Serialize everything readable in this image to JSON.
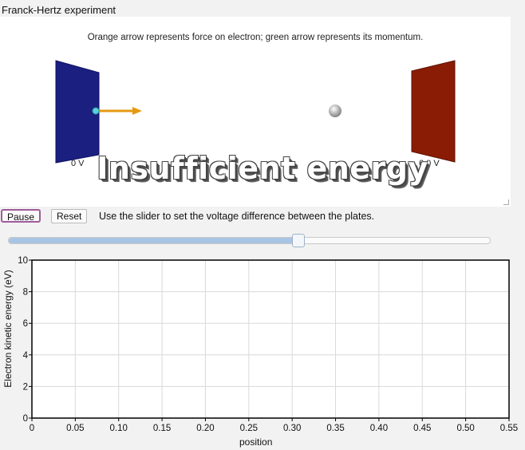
{
  "window": {
    "title": "Franck-Hertz experiment"
  },
  "scene": {
    "caption": "Orange arrow represents force on electron; green arrow represents its momentum.",
    "left_plate_label": "0 V",
    "right_plate_label": "6.0 V",
    "overlay_text": "Insufficient energy",
    "colors": {
      "left_plate": "#1b1f80",
      "right_plate": "#8a1c05",
      "force_arrow": "#e69a10",
      "electron": "#5ad0d8"
    }
  },
  "controls": {
    "pause_label": "Pause",
    "reset_label": "Reset",
    "hint": "Use the slider to set the voltage difference between the plates.",
    "slider_fraction": 0.6
  },
  "chart_data": {
    "type": "line",
    "xlabel": "position",
    "ylabel": "Electron kinetic energy (eV)",
    "xlim": [
      0,
      0.55
    ],
    "ylim": [
      0,
      10
    ],
    "x_ticks": [
      "0",
      "0.05",
      "0.10",
      "0.15",
      "0.20",
      "0.25",
      "0.30",
      "0.35",
      "0.40",
      "0.45",
      "0.50",
      "0.55"
    ],
    "y_ticks": [
      "0",
      "2",
      "4",
      "6",
      "8",
      "10"
    ],
    "grid": true,
    "series": []
  }
}
